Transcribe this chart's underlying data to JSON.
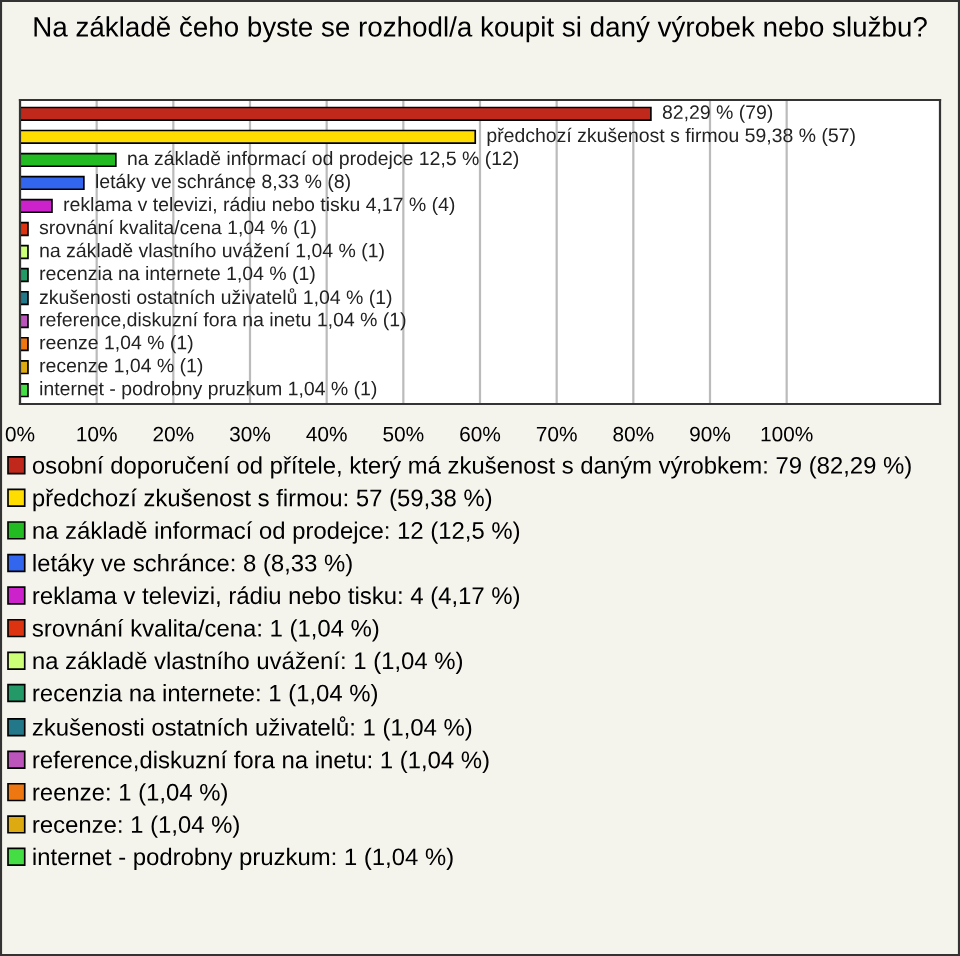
{
  "chart_data": {
    "type": "bar",
    "orientation": "horizontal",
    "title": "Na základě čeho byste se rozhodl/a koupit si daný výrobek nebo službu?",
    "categories": [
      null,
      null,
      null,
      null,
      null,
      null,
      null,
      null,
      null,
      null,
      null,
      null,
      null
    ],
    "series": [
      {
        "name": "osobní doporučení od přítele, který má zkušenost s daným výrobkem: 79 (82,29 %)",
        "color": "#c0281c",
        "values": [
          82.29,
          null,
          null,
          null,
          null,
          null,
          null,
          null,
          null,
          null,
          null,
          null,
          null
        ],
        "value_labels": [
          "82,29 % (79)",
          null,
          null,
          null,
          null,
          null,
          null,
          null,
          null,
          null,
          null,
          null,
          null
        ]
      },
      {
        "name": "předchozí zkušenost s firmou: 57 (59,38 %)",
        "color": "#ffdd00",
        "values": [
          null,
          59.38,
          null,
          null,
          null,
          null,
          null,
          null,
          null,
          null,
          null,
          null,
          null
        ],
        "value_labels": [
          null,
          "předchozí zkušenost s firmou 59,38 % (57)",
          null,
          null,
          null,
          null,
          null,
          null,
          null,
          null,
          null,
          null,
          null
        ]
      },
      {
        "name": "na základě informací od prodejce: 12 (12,5 %)",
        "color": "#22bb22",
        "values": [
          null,
          null,
          12.5,
          null,
          null,
          null,
          null,
          null,
          null,
          null,
          null,
          null,
          null
        ],
        "value_labels": [
          null,
          null,
          "na základě informací od prodejce 12,5 % (12)",
          null,
          null,
          null,
          null,
          null,
          null,
          null,
          null,
          null,
          null
        ]
      },
      {
        "name": "letáky ve schránce: 8 (8,33 %)",
        "color": "#3366ee",
        "values": [
          null,
          null,
          null,
          8.33,
          null,
          null,
          null,
          null,
          null,
          null,
          null,
          null,
          null
        ],
        "value_labels": [
          null,
          null,
          null,
          "letáky ve schránce 8,33 % (8)",
          null,
          null,
          null,
          null,
          null,
          null,
          null,
          null,
          null
        ]
      },
      {
        "name": "reklama v televizi, rádiu nebo tisku: 4 (4,17 %)",
        "color": "#cc22cc",
        "values": [
          null,
          null,
          null,
          null,
          4.17,
          null,
          null,
          null,
          null,
          null,
          null,
          null,
          null
        ],
        "value_labels": [
          null,
          null,
          null,
          null,
          "reklama v televizi, rádiu nebo tisku 4,17 % (4)",
          null,
          null,
          null,
          null,
          null,
          null,
          null,
          null
        ]
      },
      {
        "name": "srovnání kvalita/cena: 1 (1,04 %)",
        "color": "#dd3311",
        "values": [
          null,
          null,
          null,
          null,
          null,
          1.04,
          null,
          null,
          null,
          null,
          null,
          null,
          null
        ],
        "value_labels": [
          null,
          null,
          null,
          null,
          null,
          "srovnání kvalita/cena 1,04 % (1)",
          null,
          null,
          null,
          null,
          null,
          null,
          null
        ]
      },
      {
        "name": "na základě vlastního uvážení: 1 (1,04 %)",
        "color": "#ccff77",
        "values": [
          null,
          null,
          null,
          null,
          null,
          null,
          1.04,
          null,
          null,
          null,
          null,
          null,
          null
        ],
        "value_labels": [
          null,
          null,
          null,
          null,
          null,
          null,
          "na základě vlastního uvážení 1,04 % (1)",
          null,
          null,
          null,
          null,
          null,
          null
        ]
      },
      {
        "name": "recenzia na internete: 1 (1,04 %)",
        "color": "#229966",
        "values": [
          null,
          null,
          null,
          null,
          null,
          null,
          null,
          1.04,
          null,
          null,
          null,
          null,
          null
        ],
        "value_labels": [
          null,
          null,
          null,
          null,
          null,
          null,
          null,
          "recenzia na internete 1,04 % (1)",
          null,
          null,
          null,
          null,
          null
        ]
      },
      {
        "name": "zkušenosti ostatních uživatelů: 1 (1,04 %)",
        "color": "#227788",
        "values": [
          null,
          null,
          null,
          null,
          null,
          null,
          null,
          null,
          1.04,
          null,
          null,
          null,
          null
        ],
        "value_labels": [
          null,
          null,
          null,
          null,
          null,
          null,
          null,
          null,
          "zkušenosti ostatních uživatelů 1,04 % (1)",
          null,
          null,
          null,
          null
        ]
      },
      {
        "name": "reference,diskuzní fora na inetu: 1 (1,04 %)",
        "color": "#bb55bb",
        "values": [
          null,
          null,
          null,
          null,
          null,
          null,
          null,
          null,
          null,
          1.04,
          null,
          null,
          null
        ],
        "value_labels": [
          null,
          null,
          null,
          null,
          null,
          null,
          null,
          null,
          null,
          "reference,diskuzní fora na inetu 1,04 % (1)",
          null,
          null,
          null
        ]
      },
      {
        "name": "reenze: 1 (1,04 %)",
        "color": "#ee7711",
        "values": [
          null,
          null,
          null,
          null,
          null,
          null,
          null,
          null,
          null,
          null,
          1.04,
          null,
          null
        ],
        "value_labels": [
          null,
          null,
          null,
          null,
          null,
          null,
          null,
          null,
          null,
          null,
          "reenze 1,04 % (1)",
          null,
          null
        ]
      },
      {
        "name": "recenze: 1 (1,04 %)",
        "color": "#ddaa11",
        "values": [
          null,
          null,
          null,
          null,
          null,
          null,
          null,
          null,
          null,
          null,
          null,
          1.04,
          null
        ],
        "value_labels": [
          null,
          null,
          null,
          null,
          null,
          null,
          null,
          null,
          null,
          null,
          null,
          "recenze 1,04 % (1)",
          null
        ]
      },
      {
        "name": "internet - podrobny pruzkum: 1 (1,04 %)",
        "color": "#44dd44",
        "values": [
          null,
          null,
          null,
          null,
          null,
          null,
          null,
          null,
          null,
          null,
          null,
          null,
          1.04
        ],
        "value_labels": [
          null,
          null,
          null,
          null,
          null,
          null,
          null,
          null,
          null,
          null,
          null,
          null,
          "internet - podrobny pruzkum 1,04 % (1)"
        ]
      }
    ],
    "xlim": [
      0,
      120
    ],
    "xticks": [
      {
        "value": 0,
        "label": "0%"
      },
      {
        "value": 10,
        "label": "10%"
      },
      {
        "value": 20,
        "label": "20%"
      },
      {
        "value": 30,
        "label": "30%"
      },
      {
        "value": 40,
        "label": "40%"
      },
      {
        "value": 50,
        "label": "50%"
      },
      {
        "value": 60,
        "label": "60%"
      },
      {
        "value": 70,
        "label": "70%"
      },
      {
        "value": 80,
        "label": "80%"
      },
      {
        "value": 90,
        "label": "90%"
      },
      {
        "value": 100,
        "label": "100%"
      }
    ],
    "grid": "x",
    "legend": "bottom"
  }
}
